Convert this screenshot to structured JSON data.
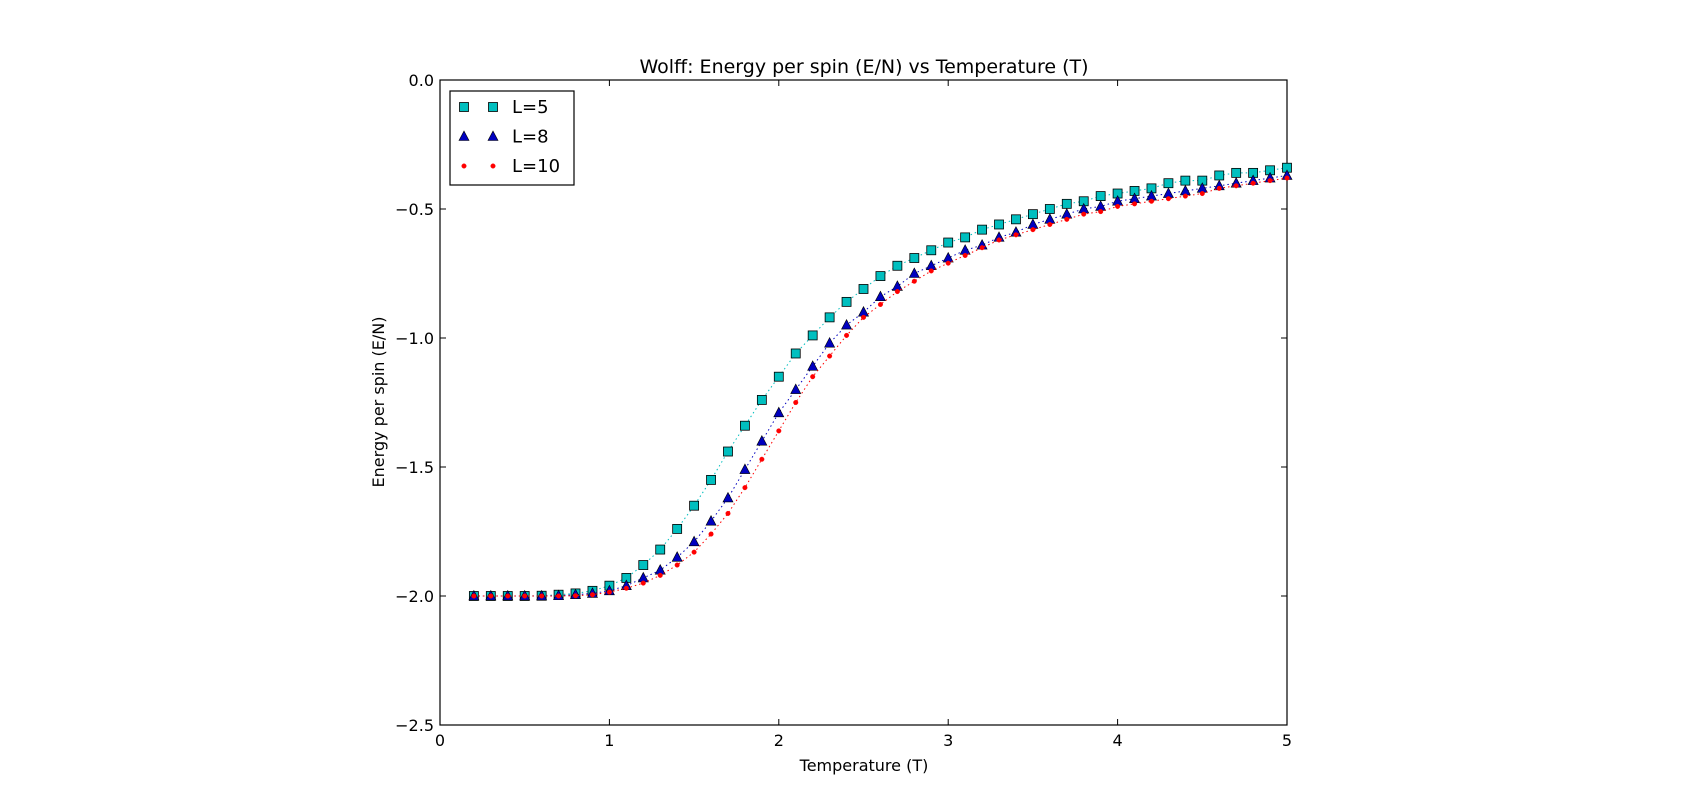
{
  "chart_data": {
    "type": "scatter",
    "title": "Wolff: Energy per spin (E/N) vs Temperature (T)",
    "xlabel": "Temperature (T)",
    "ylabel": "Energy per spin (E/N)",
    "xlim": [
      0,
      5
    ],
    "ylim": [
      -2.5,
      0.0
    ],
    "xticks": [
      0,
      1,
      2,
      3,
      4,
      5
    ],
    "yticks": [
      -2.5,
      -2.0,
      -1.5,
      -1.0,
      -0.5,
      0.0
    ],
    "xtick_labels": [
      "0",
      "1",
      "2",
      "3",
      "4",
      "5"
    ],
    "ytick_labels": [
      "−2.5",
      "−2.0",
      "−1.5",
      "−1.0",
      "−0.5",
      "0.0"
    ],
    "grid": false,
    "legend_position": "top-left",
    "x": [
      0.2,
      0.3,
      0.4,
      0.5,
      0.6,
      0.7,
      0.8,
      0.9,
      1.0,
      1.1,
      1.2,
      1.3,
      1.4,
      1.5,
      1.6,
      1.7,
      1.8,
      1.9,
      2.0,
      2.1,
      2.2,
      2.3,
      2.4,
      2.5,
      2.6,
      2.7,
      2.8,
      2.9,
      3.0,
      3.1,
      3.2,
      3.3,
      3.4,
      3.5,
      3.6,
      3.7,
      3.8,
      3.9,
      4.0,
      4.1,
      4.2,
      4.3,
      4.4,
      4.5,
      4.6,
      4.7,
      4.8,
      4.9,
      5.0
    ],
    "series": [
      {
        "name": "L=5",
        "marker": "square",
        "color": "#00bfbf",
        "values": [
          -2.0,
          -2.0,
          -2.0,
          -2.0,
          -1.999,
          -1.995,
          -1.99,
          -1.98,
          -1.96,
          -1.93,
          -1.88,
          -1.82,
          -1.74,
          -1.65,
          -1.55,
          -1.44,
          -1.34,
          -1.24,
          -1.15,
          -1.06,
          -0.99,
          -0.92,
          -0.86,
          -0.81,
          -0.76,
          -0.72,
          -0.69,
          -0.66,
          -0.63,
          -0.61,
          -0.58,
          -0.56,
          -0.54,
          -0.52,
          -0.5,
          -0.48,
          -0.47,
          -0.45,
          -0.44,
          -0.43,
          -0.42,
          -0.4,
          -0.39,
          -0.39,
          -0.37,
          -0.36,
          -0.36,
          -0.35,
          -0.34
        ]
      },
      {
        "name": "L=8",
        "marker": "triangle",
        "color": "#0000bf",
        "values": [
          -2.0,
          -2.0,
          -2.0,
          -2.0,
          -2.0,
          -1.999,
          -1.995,
          -1.99,
          -1.98,
          -1.96,
          -1.93,
          -1.9,
          -1.85,
          -1.79,
          -1.71,
          -1.62,
          -1.51,
          -1.4,
          -1.29,
          -1.2,
          -1.11,
          -1.02,
          -0.95,
          -0.9,
          -0.84,
          -0.8,
          -0.75,
          -0.72,
          -0.69,
          -0.66,
          -0.64,
          -0.61,
          -0.59,
          -0.56,
          -0.54,
          -0.52,
          -0.5,
          -0.49,
          -0.47,
          -0.46,
          -0.45,
          -0.44,
          -0.43,
          -0.42,
          -0.41,
          -0.4,
          -0.39,
          -0.38,
          -0.37
        ]
      },
      {
        "name": "L=10",
        "marker": "dot",
        "color": "#ff0000",
        "values": [
          -2.0,
          -2.0,
          -2.0,
          -2.0,
          -2.0,
          -2.0,
          -1.999,
          -1.995,
          -1.985,
          -1.97,
          -1.95,
          -1.92,
          -1.88,
          -1.83,
          -1.76,
          -1.68,
          -1.58,
          -1.47,
          -1.36,
          -1.25,
          -1.15,
          -1.07,
          -0.99,
          -0.92,
          -0.87,
          -0.82,
          -0.78,
          -0.74,
          -0.71,
          -0.68,
          -0.65,
          -0.62,
          -0.6,
          -0.58,
          -0.56,
          -0.54,
          -0.52,
          -0.51,
          -0.49,
          -0.48,
          -0.47,
          -0.46,
          -0.45,
          -0.44,
          -0.42,
          -0.41,
          -0.4,
          -0.39,
          -0.38
        ]
      }
    ]
  }
}
